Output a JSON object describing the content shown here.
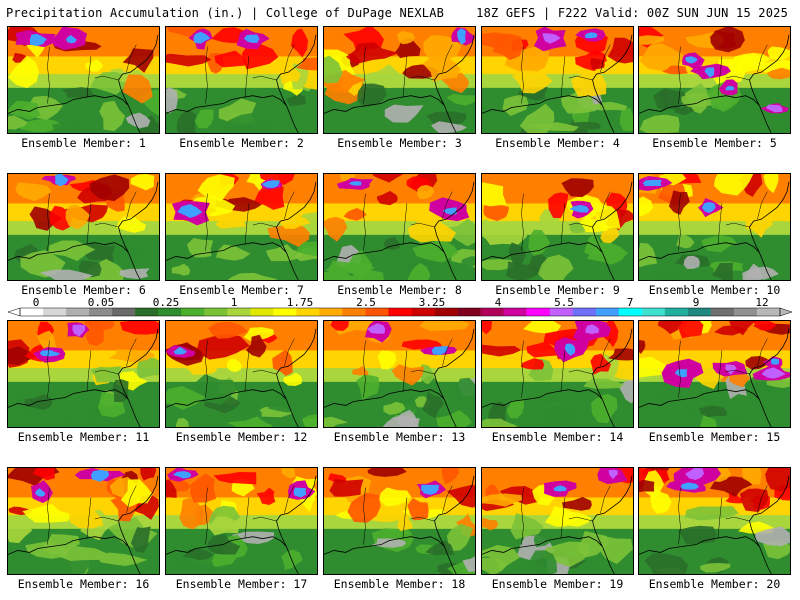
{
  "header": {
    "left": "Precipitation Accumulation (in.) | College of DuPage NEXLAB",
    "right": "18Z GEFS | F222 Valid: 00Z SUN JUN 15 2025"
  },
  "colorbar": {
    "labels": [
      "0",
      "0.05",
      "0.25",
      "1",
      "1.75",
      "2.5",
      "3.25",
      "4",
      "5.5",
      "7",
      "9",
      "12"
    ],
    "colors": [
      "#ffffff",
      "#d8d8d8",
      "#b0b0b0",
      "#8c8c8c",
      "#6a6a6a",
      "#2a6e2a",
      "#2f8c2f",
      "#4caf2e",
      "#7cc238",
      "#a8d63c",
      "#e0e800",
      "#ffff00",
      "#ffd400",
      "#ffaa00",
      "#ff8000",
      "#ff5500",
      "#ff0000",
      "#d00000",
      "#a00000",
      "#800020",
      "#b0005a",
      "#d000a0",
      "#ff00ff",
      "#c060ff",
      "#7070ff",
      "#40a0ff",
      "#00ffff",
      "#40e0d0",
      "#20b0a0",
      "#208880",
      "#707070",
      "#909090",
      "#b8b8b8"
    ]
  },
  "members": [
    {
      "label": "Ensemble Member: 1"
    },
    {
      "label": "Ensemble Member: 2"
    },
    {
      "label": "Ensemble Member: 3"
    },
    {
      "label": "Ensemble Member: 4"
    },
    {
      "label": "Ensemble Member: 5"
    },
    {
      "label": "Ensemble Member: 6"
    },
    {
      "label": "Ensemble Member: 7"
    },
    {
      "label": "Ensemble Member: 8"
    },
    {
      "label": "Ensemble Member: 9"
    },
    {
      "label": "Ensemble Member: 10"
    },
    {
      "label": "Ensemble Member: 11"
    },
    {
      "label": "Ensemble Member: 12"
    },
    {
      "label": "Ensemble Member: 13"
    },
    {
      "label": "Ensemble Member: 14"
    },
    {
      "label": "Ensemble Member: 15"
    },
    {
      "label": "Ensemble Member: 16"
    },
    {
      "label": "Ensemble Member: 17"
    },
    {
      "label": "Ensemble Member: 18"
    },
    {
      "label": "Ensemble Member: 19"
    },
    {
      "label": "Ensemble Member: 20"
    }
  ]
}
